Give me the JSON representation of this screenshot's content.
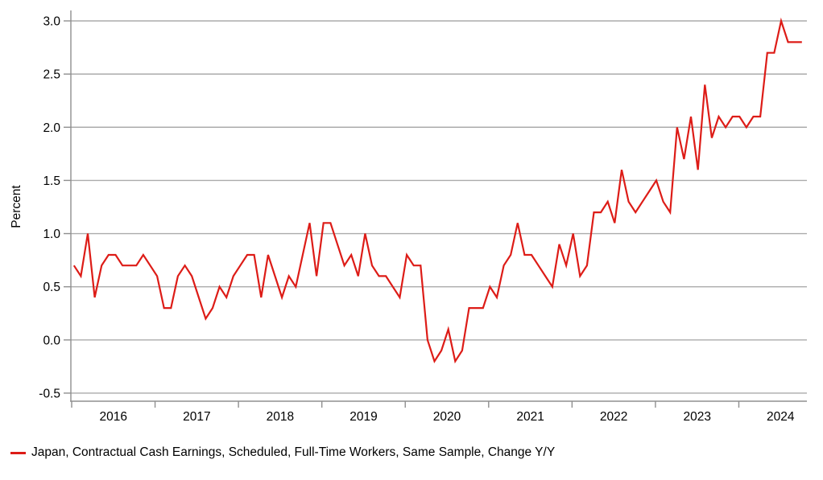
{
  "page": {
    "background": "#ffffff"
  },
  "legend": {
    "label": "Japan, Contractual Cash Earnings, Scheduled, Full-Time Workers, Same Sample, Change Y/Y",
    "swatch_color": "#dd1c17"
  },
  "chart_data": {
    "type": "line",
    "title": "",
    "ylabel": "Percent",
    "xlabel": "",
    "x_start": "2016-01",
    "x_end": "2024-10",
    "frequency": "monthly",
    "grid": "horizontal",
    "legend_position": "bottom-left",
    "line_color": "#dd1c17",
    "gridline_color": "#ababab",
    "axis_color": "#8f8f8f",
    "text_color": "#000000",
    "ylim": [
      -0.5,
      3.0
    ],
    "ytick_step": 0.5,
    "y_ticks": [
      "3.0",
      "2.5",
      "2.0",
      "1.5",
      "1.0",
      "0.5",
      "0.0",
      "-0.5"
    ],
    "x_year_ticks": [
      "2016",
      "2017",
      "2018",
      "2019",
      "2020",
      "2021",
      "2022",
      "2023",
      "2024"
    ],
    "series": [
      {
        "name": "Japan, Contractual Cash Earnings, Scheduled, Full-Time Workers, Same Sample, Change Y/Y",
        "values": [
          0.7,
          0.6,
          1.0,
          0.4,
          0.7,
          0.8,
          0.8,
          0.7,
          0.7,
          0.7,
          0.8,
          0.7,
          0.6,
          0.3,
          0.3,
          0.6,
          0.7,
          0.6,
          0.4,
          0.2,
          0.3,
          0.5,
          0.4,
          0.6,
          0.7,
          0.8,
          0.8,
          0.4,
          0.8,
          0.6,
          0.4,
          0.6,
          0.5,
          0.8,
          1.1,
          0.6,
          1.1,
          1.1,
          0.9,
          0.7,
          0.8,
          0.6,
          1.0,
          0.7,
          0.6,
          0.6,
          0.5,
          0.4,
          0.8,
          0.7,
          0.7,
          0.0,
          -0.2,
          -0.1,
          0.1,
          -0.2,
          -0.1,
          0.3,
          0.3,
          0.3,
          0.5,
          0.4,
          0.7,
          0.8,
          1.1,
          0.8,
          0.8,
          0.7,
          0.6,
          0.5,
          0.9,
          0.7,
          1.0,
          0.6,
          0.7,
          1.2,
          1.2,
          1.3,
          1.1,
          1.6,
          1.3,
          1.2,
          1.3,
          1.4,
          1.5,
          1.3,
          1.2,
          2.0,
          1.7,
          2.1,
          1.6,
          2.4,
          1.9,
          2.1,
          2.0,
          2.1,
          2.1,
          2.0,
          2.1,
          2.1,
          2.7,
          2.7,
          3.0,
          2.8,
          2.8,
          2.8
        ]
      }
    ]
  }
}
